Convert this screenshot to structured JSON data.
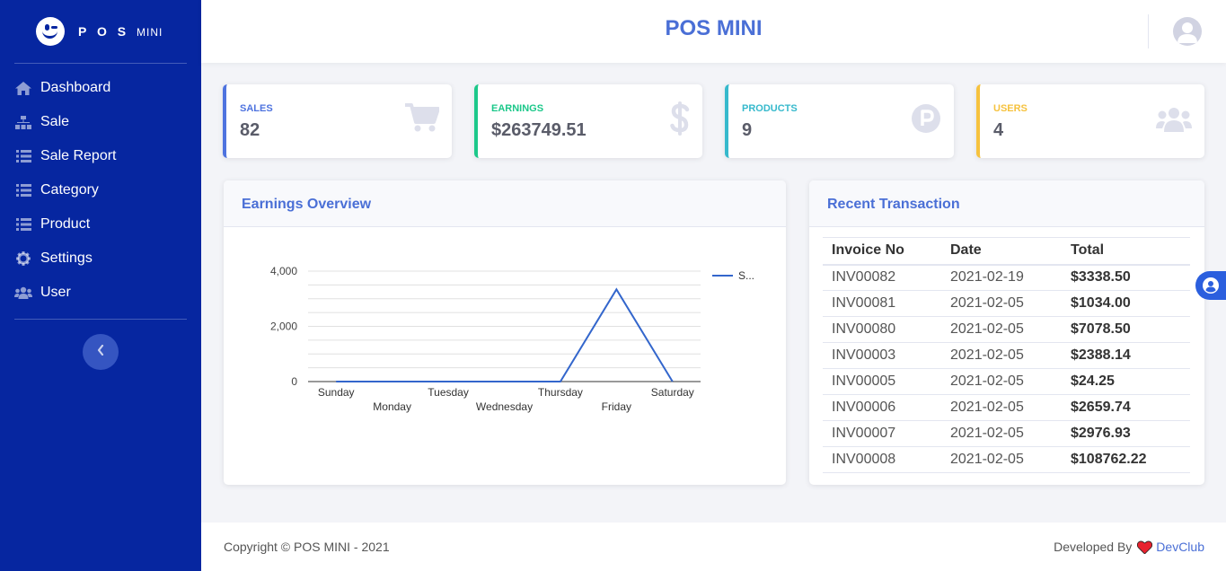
{
  "brand": {
    "name": "P O S",
    "suffix": "MINI"
  },
  "sidebar": {
    "items": [
      {
        "label": "Dashboard",
        "icon": "home-icon"
      },
      {
        "label": "Sale",
        "icon": "sitemap-icon"
      },
      {
        "label": "Sale Report",
        "icon": "list-icon"
      },
      {
        "label": "Category",
        "icon": "list-icon"
      },
      {
        "label": "Product",
        "icon": "list-icon"
      },
      {
        "label": "Settings",
        "icon": "gear-icon"
      },
      {
        "label": "User",
        "icon": "users-icon"
      }
    ],
    "toggle_icon": "chevron-left-icon"
  },
  "topbar": {
    "title": "POS MINI",
    "avatar_icon": "user-circle-icon"
  },
  "stats": [
    {
      "label": "SALES",
      "value": "82",
      "color": "#4e73df",
      "icon": "cart-icon"
    },
    {
      "label": "EARNINGS",
      "value": "$263749.51",
      "color": "#1cc88a",
      "icon": "dollar-icon"
    },
    {
      "label": "PRODUCTS",
      "value": "9",
      "color": "#36b9cc",
      "icon": "parking-circle-icon"
    },
    {
      "label": "USERS",
      "value": "4",
      "color": "#f6c23e",
      "icon": "users-icon"
    }
  ],
  "earnings": {
    "title": "Earnings Overview"
  },
  "chart_data": {
    "type": "line",
    "categories": [
      "Sunday",
      "Monday",
      "Tuesday",
      "Wednesday",
      "Thursday",
      "Friday",
      "Saturday"
    ],
    "series": [
      {
        "name": "S...",
        "values": [
          0,
          0,
          0,
          0,
          0,
          3338.5,
          0
        ],
        "color": "#3366cc"
      }
    ],
    "yticks": [
      "0",
      "2,000",
      "4,000"
    ],
    "ylim": [
      0,
      4000
    ],
    "legend": "right"
  },
  "transactions": {
    "title": "Recent Transaction",
    "columns": [
      "Invoice No",
      "Date",
      "Total"
    ],
    "rows": [
      [
        "INV00082",
        "2021-02-19",
        "$3338.50"
      ],
      [
        "INV00081",
        "2021-02-05",
        "$1034.00"
      ],
      [
        "INV00080",
        "2021-02-05",
        "$7078.50"
      ],
      [
        "INV00003",
        "2021-02-05",
        "$2388.14"
      ],
      [
        "INV00005",
        "2021-02-05",
        "$24.25"
      ],
      [
        "INV00006",
        "2021-02-05",
        "$2659.74"
      ],
      [
        "INV00007",
        "2021-02-05",
        "$2976.93"
      ],
      [
        "INV00008",
        "2021-02-05",
        "$108762.22"
      ]
    ]
  },
  "footer": {
    "copyright": "Copyright © POS MINI - 2021",
    "developed_by": "Developed By",
    "link": "DevClub",
    "heart_icon": "heart-icon"
  },
  "floating_button": {
    "icon": "user-circle-icon"
  }
}
